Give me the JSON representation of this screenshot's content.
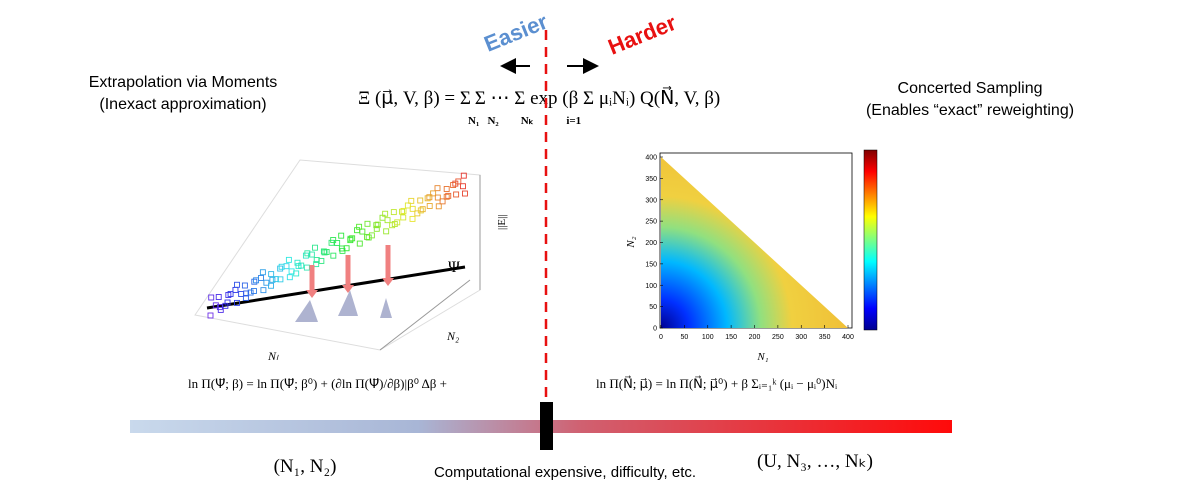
{
  "header": {
    "easier": "Easier",
    "harder": "Harder"
  },
  "center_equation": "Ξ (μ⃗, V, β) = Σ Σ ⋯ Σ exp (β Σ μᵢNᵢ) Q(N⃗, V, β)",
  "center_equation_limits": "N₁   N₂        Nₖ            i=1",
  "left": {
    "title": "Extrapolation via Moments",
    "subtitle": "(Inexact approximation)",
    "equation": "ln Π(Ψ⃗; β) = ln Π(Ψ⃗; β⁰) + (∂ln Π(Ψ⃗)/∂β)|β⁰ Δβ +",
    "labels": {
      "psi": "Ψ",
      "z_axis": "||E||",
      "x_axis": "Nₗ",
      "y_axis": "N₂"
    }
  },
  "right": {
    "title": "Concerted Sampling",
    "subtitle": "(Enables “exact” reweighting)",
    "equation": "ln Π(N⃗; μ⃗) = ln Π(N⃗; μ⃗⁰) + β Σᵢ₌₁ᵏ (μᵢ − μᵢ⁰)Nᵢ",
    "heatmap": {
      "xlabel": "N₁",
      "ylabel": "N₂",
      "xticks": [
        0,
        50,
        100,
        150,
        200,
        250,
        300,
        350,
        400
      ],
      "yticks": [
        0,
        50,
        100,
        150,
        200,
        250,
        300,
        350,
        400
      ]
    }
  },
  "footer": {
    "left": "(N₁, N₂)",
    "center": "Computational expensive, difficulty, etc.",
    "right": "(U, N₃, …, Nₖ)"
  }
}
